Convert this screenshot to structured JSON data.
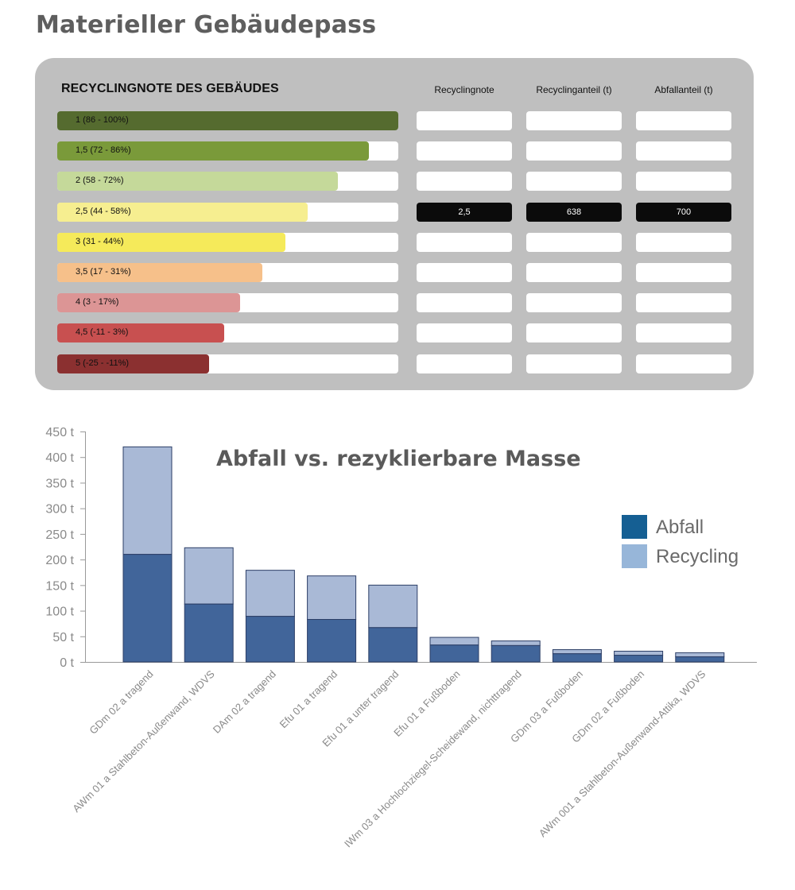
{
  "page_title": "Materieller Gebäudepass",
  "rating_panel": {
    "heading": "RECYCLINGNOTE DES GEBÄUDES",
    "columns": [
      "Recyclingnote",
      "Recyclinganteil (t)",
      "Abfallanteil (t)"
    ],
    "grades": [
      {
        "label": "1 (86 - 100%)",
        "fill": 1.0,
        "color": "#556b2f"
      },
      {
        "label": "1,5 (72 - 86%)",
        "fill": 0.913,
        "color": "#7a9a3a"
      },
      {
        "label": "2 (58 - 72%)",
        "fill": 0.824,
        "color": "#c5d99a"
      },
      {
        "label": "2,5 (44 - 58%)",
        "fill": 0.734,
        "color": "#f6ee90"
      },
      {
        "label": "3 (31 - 44%)",
        "fill": 0.669,
        "color": "#f5ea5a"
      },
      {
        "label": "3,5 (17 - 31%)",
        "fill": 0.601,
        "color": "#f6c08a"
      },
      {
        "label": "4 (3 - 17%)",
        "fill": 0.535,
        "color": "#dc9595"
      },
      {
        "label": "4,5 (-11 - 3%)",
        "fill": 0.49,
        "color": "#c85050"
      },
      {
        "label": "5 (-25 - -11%)",
        "fill": 0.446,
        "color": "#8b3030"
      }
    ],
    "active_index": 3,
    "active_values": [
      "2,5",
      "638",
      "700"
    ]
  },
  "chart_data": {
    "type": "bar",
    "stacked": true,
    "title": "Abfall vs. rezyklierbare Masse",
    "categories": [
      "GDm 02 a tragend",
      "AWm 01 a Stahlbeton-Außenwand, WDVS",
      "DAm 02 a tragend",
      "Efu 01 a tragend",
      "Efu 01 a unter tragend",
      "Efu 01 a Fußboden",
      "IWm 03 a Hochlochziegel-Scheidewand, nichttragend",
      "GDm 03 a Fußboden",
      "GDm 02 a Fußboden",
      "AWm 001 a Stahlbeton-Außenwand-Attika, WDVS"
    ],
    "series": [
      {
        "name": "Abfall",
        "values": [
          210,
          113,
          89,
          83,
          67,
          33,
          32,
          16,
          13,
          10
        ],
        "color": "#41659a"
      },
      {
        "name": "Recycling",
        "values": [
          210,
          110,
          90,
          85,
          83,
          15,
          9,
          8,
          8,
          8
        ],
        "color": "#a9b9d6"
      }
    ],
    "ylim": [
      0,
      450
    ],
    "yticks": [
      "0 t",
      "50 t",
      "100 t",
      "150 t",
      "200 t",
      "250 t",
      "300 t",
      "350 t",
      "400 t",
      "450 t"
    ],
    "legend": [
      {
        "name": "Abfall",
        "color": "#155f93"
      },
      {
        "name": "Recycling",
        "color": "#97b6d9"
      }
    ],
    "legend_position": "right",
    "grid": false
  }
}
